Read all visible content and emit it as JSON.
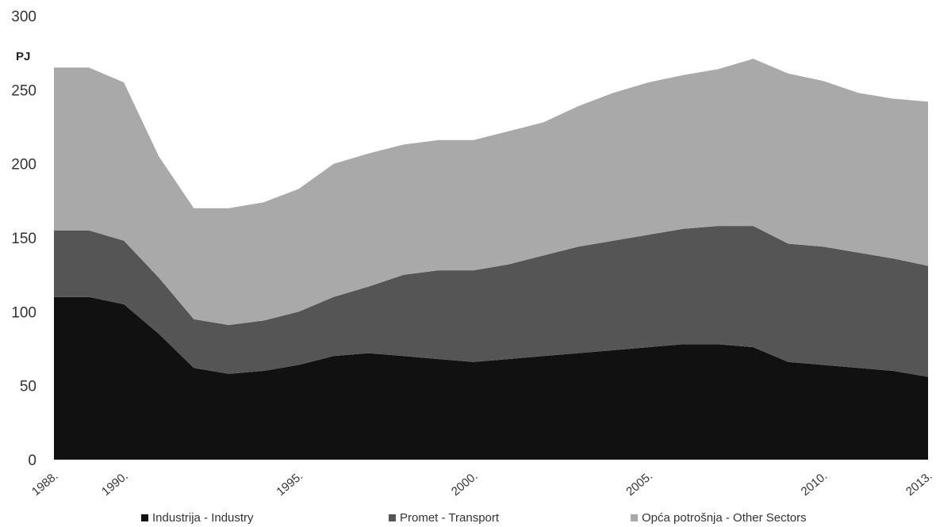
{
  "chart_data": {
    "type": "area",
    "stacked": true,
    "title": "",
    "ylabel": "PJ",
    "xlabel": "",
    "ylim": [
      0,
      300
    ],
    "yticks": [
      0,
      50,
      100,
      150,
      200,
      250,
      300
    ],
    "xlim": [
      1988,
      2013
    ],
    "xtick_labels": [
      {
        "x": 1988,
        "label": "1988."
      },
      {
        "x": 1990,
        "label": "1990."
      },
      {
        "x": 1995,
        "label": "1995."
      },
      {
        "x": 2000,
        "label": "2000."
      },
      {
        "x": 2005,
        "label": "2005."
      },
      {
        "x": 2010,
        "label": "2010."
      },
      {
        "x": 2013,
        "label": "2013."
      }
    ],
    "x": [
      1988,
      1989,
      1990,
      1991,
      1992,
      1993,
      1994,
      1995,
      1996,
      1997,
      1998,
      1999,
      2000,
      2001,
      2002,
      2003,
      2004,
      2005,
      2006,
      2007,
      2008,
      2009,
      2010,
      2011,
      2012,
      2013
    ],
    "series": [
      {
        "name": "Industrija - Industry",
        "color": "#111111",
        "values": [
          110,
          110,
          105,
          85,
          62,
          58,
          60,
          64,
          70,
          72,
          70,
          68,
          66,
          68,
          70,
          72,
          74,
          76,
          78,
          78,
          76,
          66,
          64,
          62,
          60,
          56
        ]
      },
      {
        "name": "Promet - Transport",
        "color": "#555555",
        "values": [
          45,
          45,
          43,
          38,
          33,
          33,
          34,
          36,
          40,
          45,
          55,
          60,
          62,
          64,
          68,
          72,
          74,
          76,
          78,
          80,
          82,
          80,
          80,
          78,
          76,
          75
        ]
      },
      {
        "name": "Opća potrošnja - Other Sectors",
        "color": "#a9a9a9",
        "values": [
          110,
          110,
          107,
          82,
          75,
          79,
          80,
          83,
          90,
          90,
          88,
          88,
          88,
          90,
          90,
          95,
          100,
          103,
          104,
          106,
          113,
          115,
          112,
          108,
          108,
          111
        ]
      }
    ],
    "legend_position": "bottom",
    "grid": false
  }
}
